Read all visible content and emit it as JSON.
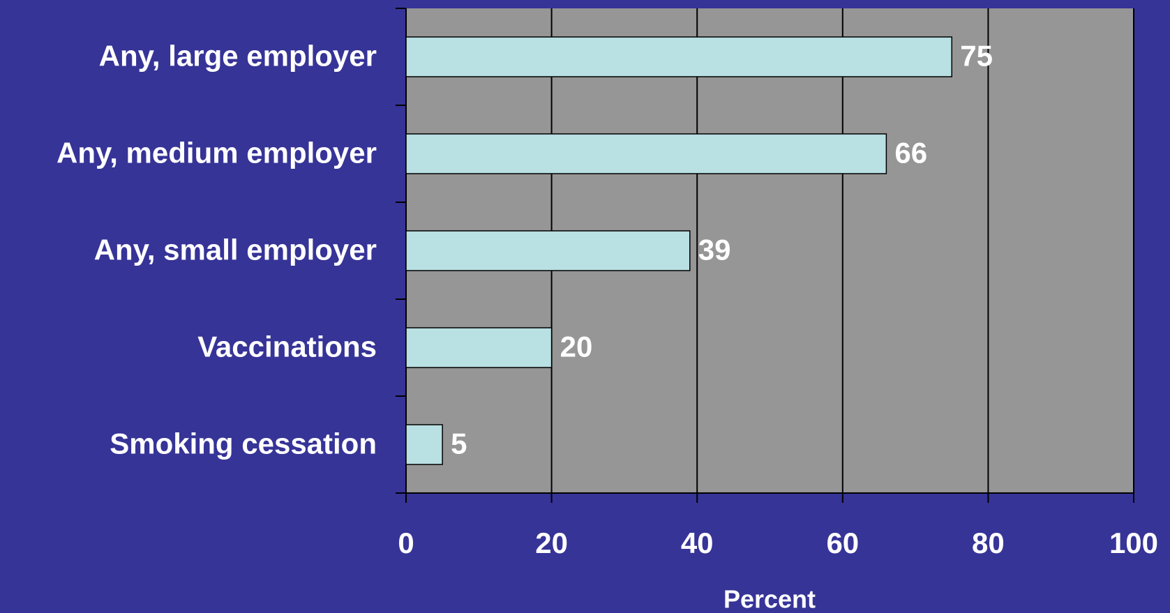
{
  "chart_data": {
    "type": "bar",
    "orientation": "horizontal",
    "x_label": "Percent",
    "categories": [
      "Any, large employer",
      "Any, medium employer",
      "Any, small employer",
      "Vaccinations",
      "Smoking cessation"
    ],
    "values": [
      75,
      66,
      39,
      20,
      5
    ],
    "color": "#b9e0e3",
    "xlim": [
      0,
      100
    ],
    "xticks": [
      0,
      20,
      40,
      60,
      80,
      100
    ],
    "grid": true
  }
}
